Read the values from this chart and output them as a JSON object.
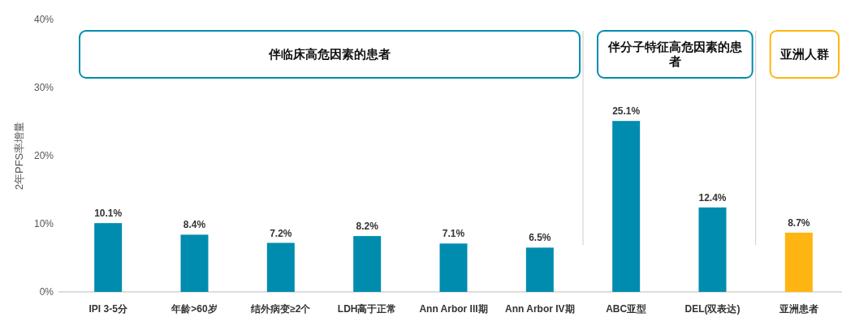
{
  "chart_data": {
    "type": "bar",
    "ylabel": "2年PFS率增量",
    "categories": [
      "IPI 3-5分",
      "年龄>60岁",
      "结外病变≥2个",
      "LDH高于正常",
      "Ann Arbor III期",
      "Ann Arbor IV期",
      "ABC亚型",
      "DEL(双表达)",
      "亚洲患者"
    ],
    "values": [
      10.1,
      8.4,
      7.2,
      8.2,
      7.1,
      6.5,
      25.1,
      12.4,
      8.7
    ],
    "colors": [
      "#008caf",
      "#008caf",
      "#008caf",
      "#008caf",
      "#008caf",
      "#008caf",
      "#008caf",
      "#008caf",
      "#ffb511"
    ],
    "value_labels": [
      "10.1%",
      "8.4%",
      "7.2%",
      "8.2%",
      "7.1%",
      "6.5%",
      "25.1%",
      "12.4%",
      "8.7%"
    ],
    "ylim": [
      0,
      40
    ],
    "yticks": [
      {
        "value": 0,
        "label": "0%"
      },
      {
        "value": 10,
        "label": "10%"
      },
      {
        "value": 20,
        "label": "20%"
      },
      {
        "value": 30,
        "label": "30%"
      },
      {
        "value": 40,
        "label": "40%"
      }
    ],
    "annotations": [
      "伴临床高危因素的患者",
      "伴分子特征高危因素的患者",
      "亚洲人群"
    ],
    "grid": false
  }
}
